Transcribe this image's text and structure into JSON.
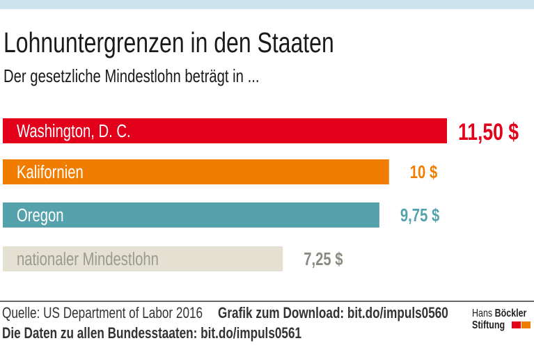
{
  "chart_data": {
    "type": "bar",
    "orientation": "horizontal",
    "title": "Lohnuntergrenzen in den Staaten",
    "subtitle": "Der gesetzliche Mindestlohn beträgt in ...",
    "categories": [
      "Washington, D. C.",
      "Kalifornien",
      "Oregon",
      "nationaler Mindestlohn"
    ],
    "values": [
      11.5,
      10,
      9.75,
      7.25
    ],
    "value_labels": [
      "11,50 $",
      "10 $",
      "9,75 $",
      "7,25 $"
    ],
    "colors": [
      "#e2001a",
      "#f07d00",
      "#55a2ad",
      "#e4e1d2"
    ],
    "label_colors": [
      "#ffffff",
      "#ffffff",
      "#ffffff",
      "#9a9a90"
    ],
    "value_label_colors": [
      "#e2001a",
      "#f07d00",
      "#55a2ad",
      "#8a8a80"
    ],
    "xlim": [
      0,
      11.5
    ],
    "grid": false
  },
  "footer": {
    "source": "Quelle: US Department of Labor 2016",
    "download": "Grafik zum Download: bit.do/impuls0560",
    "all_states": "Die Daten zu allen Bundesstaaten: bit.do/impuls0561"
  },
  "logo": {
    "line1a": "Hans",
    "line1b": "Böckler",
    "line2": "Stiftung",
    "colors": [
      "#e2001a",
      "#f07d00"
    ]
  }
}
